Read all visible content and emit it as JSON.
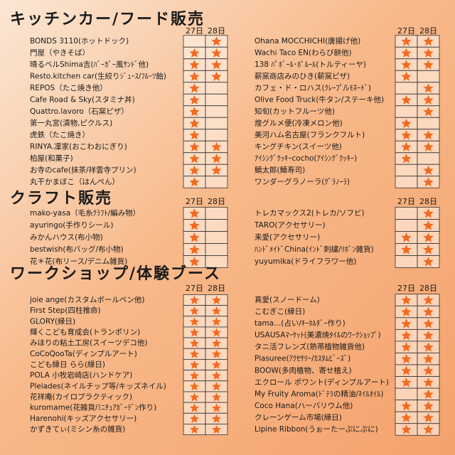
{
  "sections": [
    {
      "title": "キッチンカー/フード販売",
      "days": [
        "27日",
        "28日"
      ],
      "columns": [
        [
          {
            "name": "BONDS 3110(ホットドック)",
            "d27": false,
            "d28": true
          },
          {
            "name": "門屋（やきそば）",
            "d27": true,
            "d28": true
          },
          {
            "name": "晴るベルShima吉(ﾊﾞｰｶﾞｰ風ｻﾝﾄﾞ他)",
            "d27": true,
            "d28": true
          },
          {
            "name": "Resto.kitchen car(生絞りｼﾞｭｰｽ/ﾌﾙｰﾂ飴)",
            "d27": true,
            "d28": true
          },
          {
            "name": "REPOS（たこ焼き他）",
            "d27": true,
            "d28": false
          },
          {
            "name": "Cafe Road & Sky(スタミナ丼)",
            "d27": true,
            "d28": false
          },
          {
            "name": "Quattro.lavoro（石窯ピザ）",
            "d27": true,
            "d28": false
          },
          {
            "name": "第一丸宮(漬物,ピクルス)",
            "d27": true,
            "d28": false
          },
          {
            "name": "虎鉄（たこ焼き）",
            "d27": true,
            "d28": false
          },
          {
            "name": "RINYA.凜家(おこわおにぎり)",
            "d27": true,
            "d28": true
          },
          {
            "name": "柏屋(和菓子)",
            "d27": true,
            "d28": true
          },
          {
            "name": "お寺のcafe(抹茶/祥雲寺プリン)",
            "d27": true,
            "d28": true
          },
          {
            "name": "丸干かまぼこ（はんぺん）",
            "d27": true,
            "d28": false
          }
        ],
        [
          {
            "name": "Ohana MOCCHICHI(唐揚げ他)",
            "d27": true,
            "d28": true
          },
          {
            "name": "Wachi Taco EN(わらび餅他)",
            "d27": true,
            "d28": true
          },
          {
            "name": "138 ﾊﾟﾎﾞｰﾙ･ﾎﾟﾙｰﾙ(トルティーヤ)",
            "d27": true,
            "d28": true
          },
          {
            "name": "薪窯商店みのひき(薪窯ピザ)",
            "d27": true,
            "d28": false
          },
          {
            "name": "カフェ・ド・ロハス(ｸﾚｰﾌﾟ/ﾚﾓﾈｰﾄﾞ)",
            "d27": false,
            "d28": true
          },
          {
            "name": "Olive Food Truck(牛タン/ステーキ他)",
            "d27": true,
            "d28": true
          },
          {
            "name": "知旬(カットフルーツ他)",
            "d27": false,
            "d28": true
          },
          {
            "name": "煌グルメ便(冷凍メロン他)",
            "d27": true,
            "d28": false
          },
          {
            "name": "美河ハム名古屋(フランクフルト)",
            "d27": true,
            "d28": true
          },
          {
            "name": "キングチキン(スイーツ他)",
            "d27": true,
            "d28": true
          },
          {
            "name": "ｱｲｼﾝｸﾞｸｯｷｰcocho(ｱｲｼﾝｸﾞｸｯｷｰ)",
            "d27": true,
            "d28": false
          },
          {
            "name": "鯖太郎(鯖寿司)",
            "d27": false,
            "d28": true
          },
          {
            "name": "ワンダーグラノーラ(ｸﾞﾗﾉｰﾗ)",
            "d27": false,
            "d28": true
          }
        ]
      ]
    },
    {
      "title": "クラフト販売",
      "days": [
        "27日",
        "28日"
      ],
      "columns": [
        [
          {
            "name": "mako-yasa（毛糸ｸﾗﾌﾄ/編み物）",
            "d27": true,
            "d28": false
          },
          {
            "name": "ayuringo(手作りシール)",
            "d27": true,
            "d28": false
          },
          {
            "name": "みかんハウス(布小物)",
            "d27": true,
            "d28": false
          },
          {
            "name": "bestwish(布バッグ/布小物)",
            "d27": true,
            "d28": false
          },
          {
            "name": "花＊花(布リース/デニム雑貨)",
            "d27": true,
            "d28": false
          }
        ],
        [
          {
            "name": "トレカマックス2(トレカ/ソフビ)",
            "d27": false,
            "d28": true
          },
          {
            "name": "TARO(アクセサリー)",
            "d27": false,
            "d28": true
          },
          {
            "name": "来愛(アクセサリー)",
            "d27": true,
            "d28": true
          },
          {
            "name": "ﾊﾝﾄﾞﾒｲﾄﾞChina(ｲﾝﾄﾞ刺繍/ﾘﾎﾞﾝ雑貨)",
            "d27": true,
            "d28": true
          },
          {
            "name": "yuyumika(ドライフラワー他)",
            "d27": false,
            "d28": true
          }
        ]
      ]
    },
    {
      "title": "ワークショップ/体験ブース",
      "days": [
        "27日",
        "28日"
      ],
      "columns": [
        [
          {
            "name": "joie ange(カスタムボールペン他)",
            "d27": true,
            "d28": true
          },
          {
            "name": "First Step(四柱推命)",
            "d27": true,
            "d28": true
          },
          {
            "name": "GLORY(縁日)",
            "d27": true,
            "d28": true
          },
          {
            "name": "輝くこども育成会(トランポリン)",
            "d27": true,
            "d28": true
          },
          {
            "name": "みほりの粘土工房(スイーツデコ他)",
            "d27": true,
            "d28": true
          },
          {
            "name": "CoCoQooTa(ディンプルアート)",
            "d27": true,
            "d28": true
          },
          {
            "name": "こども縁日 らら(縁日)",
            "d27": true,
            "d28": true
          },
          {
            "name": "POLA 小牧岩崎店(ハンドケア)",
            "d27": true,
            "d28": true
          },
          {
            "name": "Pleiades(ネイルチップ等/キッズネイル)",
            "d27": true,
            "d28": true
          },
          {
            "name": "花祥庵(カイロプラクティック)",
            "d27": true,
            "d28": true
          },
          {
            "name": "kuromame(花雑貨/ﾐﾆﾁｭｱｶﾞｰﾃﾞﾝ作り)",
            "d27": true,
            "d28": true
          },
          {
            "name": "Harenohi(キッズアクセサリー)",
            "d27": true,
            "d28": true
          },
          {
            "name": "かずきてぃ(ミシン糸の雑貨)",
            "d27": true,
            "d28": true
          }
        ],
        [
          {
            "name": "真愛(スノードーム)",
            "d27": true,
            "d28": true
          },
          {
            "name": "こむぎこ(縁日)",
            "d27": true,
            "d28": true
          },
          {
            "name": "tama...(占い/ｷｰﾎﾙﾀﾞｰ作り)",
            "d27": true,
            "d28": true
          },
          {
            "name": "USAUSAﾏｰｹｯﾄ(美濃焼ﾀｲﾙのﾜｰｸｼｮｯﾌﾟ)",
            "d27": true,
            "d28": true
          },
          {
            "name": "タニ活フレンズ(熱帯植物雑貨他)",
            "d27": true,
            "d28": true
          },
          {
            "name": "Piasuree(ｱｸｾｻﾘｰ/ｶｽﾀﾑﾋﾞｰｽﾞ)",
            "d27": true,
            "d28": true
          },
          {
            "name": "BOOW(多肉植物、寄せ植え)",
            "d27": true,
            "d28": true
          },
          {
            "name": "エクロール ポワント(ディンプルアート)",
            "d27": true,
            "d28": true
          },
          {
            "name": "My Fruity Aroma(ﾄﾞﾃﾗの精油/ﾈｲﾙｵｲﾙ)",
            "d27": false,
            "d28": true
          },
          {
            "name": "Coco Hana(ハーバリウム他)",
            "d27": true,
            "d28": true
          },
          {
            "name": "クレーンゲーム市場(縁日)",
            "d27": true,
            "d28": true
          },
          {
            "name": "Lipine Ribbon(うぉーたーぷにぷに)",
            "d27": true,
            "d28": true
          }
        ]
      ]
    }
  ]
}
